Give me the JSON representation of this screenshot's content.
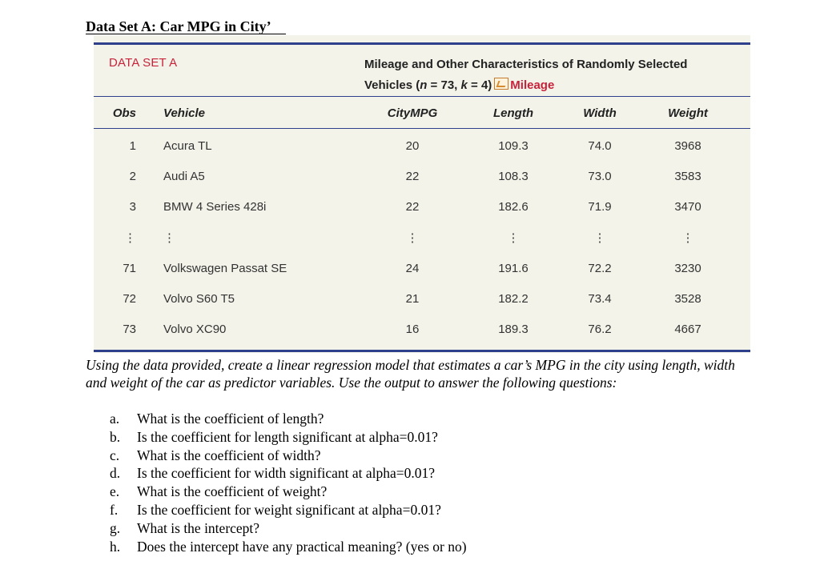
{
  "title": "Data Set A: Car MPG in City’",
  "dataset": {
    "label": "DATA SET A",
    "caption_line1": "Mileage and Other Characteristics of Randomly Selected",
    "caption_line2_pre": "Vehicles (",
    "n_expr": "n",
    "n_val": " = 73, ",
    "k_expr": "k",
    "k_val": " = 4)",
    "link_text": "Mileage",
    "headers": [
      "Obs",
      "Vehicle",
      "CityMPG",
      "Length",
      "Width",
      "Weight"
    ],
    "rows": [
      {
        "obs": "1",
        "vehicle": "Acura TL",
        "city_mpg": "20",
        "length": "109.3",
        "width": "74.0",
        "weight": "3968"
      },
      {
        "obs": "2",
        "vehicle": "Audi A5",
        "city_mpg": "22",
        "length": "108.3",
        "width": "73.0",
        "weight": "3583"
      },
      {
        "obs": "3",
        "vehicle": "BMW 4 Series 428i",
        "city_mpg": "22",
        "length": "182.6",
        "width": "71.9",
        "weight": "3470"
      },
      {
        "obs": "⋮",
        "vehicle": "⋮",
        "city_mpg": "⋮",
        "length": "⋮",
        "width": "⋮",
        "weight": "⋮"
      },
      {
        "obs": "71",
        "vehicle": "Volkswagen Passat SE",
        "city_mpg": "24",
        "length": "191.6",
        "width": "72.2",
        "weight": "3230"
      },
      {
        "obs": "72",
        "vehicle": "Volvo S60 T5",
        "city_mpg": "21",
        "length": "182.2",
        "width": "73.4",
        "weight": "3528"
      },
      {
        "obs": "73",
        "vehicle": "Volvo XC90",
        "city_mpg": "16",
        "length": "189.3",
        "width": "76.2",
        "weight": "4667"
      }
    ]
  },
  "instructions": "Using the data provided, create a linear regression model that estimates a car’s MPG in the city using length, width and weight of the car as predictor variables. Use the output to answer the following questions:",
  "questions": [
    {
      "label": "a.",
      "text": "What is the coefficient of length?"
    },
    {
      "label": "b.",
      "text": "Is the coefficient for length significant at alpha=0.01?"
    },
    {
      "label": "c.",
      "text": "What is the coefficient of width?"
    },
    {
      "label": "d.",
      "text": "Is the coefficient for width significant at alpha=0.01?"
    },
    {
      "label": "e.",
      "text": "What is the coefficient of weight?"
    },
    {
      "label": "f.",
      "text": "Is the coefficient for weight significant at alpha=0.01?"
    },
    {
      "label": "g.",
      "text": "What is the intercept?"
    },
    {
      "label": "h.",
      "text": "Does the intercept have any practical meaning? (yes or no)"
    }
  ]
}
